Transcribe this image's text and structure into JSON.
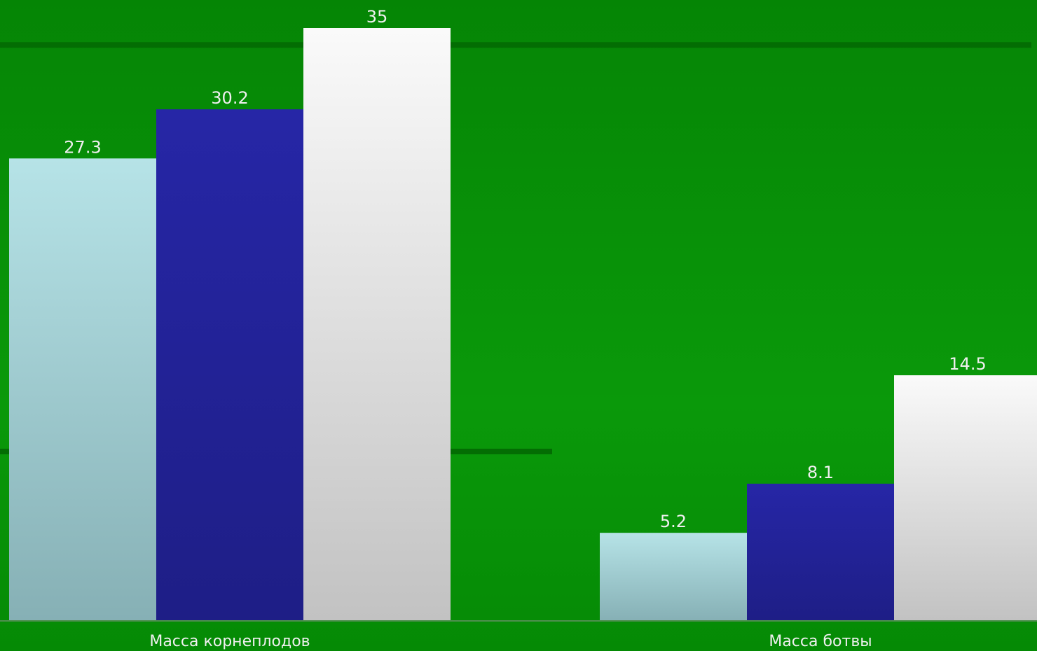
{
  "chart_data": {
    "type": "bar",
    "categories": [
      "Масса корнеплодов",
      "Масса ботвы"
    ],
    "series": [
      {
        "values": [
          27.3,
          5.2
        ],
        "color": "#a8d8dc"
      },
      {
        "values": [
          30.2,
          8.1
        ],
        "color": "#2222a0"
      },
      {
        "values": [
          35,
          14.5
        ],
        "color": "#f4f4f4"
      }
    ],
    "data_labels": [
      [
        "27.3",
        "5.2"
      ],
      [
        "30.2",
        "8.1"
      ],
      [
        "35",
        "14.5"
      ]
    ],
    "ylim": [
      0,
      35
    ],
    "grid": true,
    "legend": "none",
    "background_color": "#078e07",
    "label_color": "#f0f0f0"
  }
}
